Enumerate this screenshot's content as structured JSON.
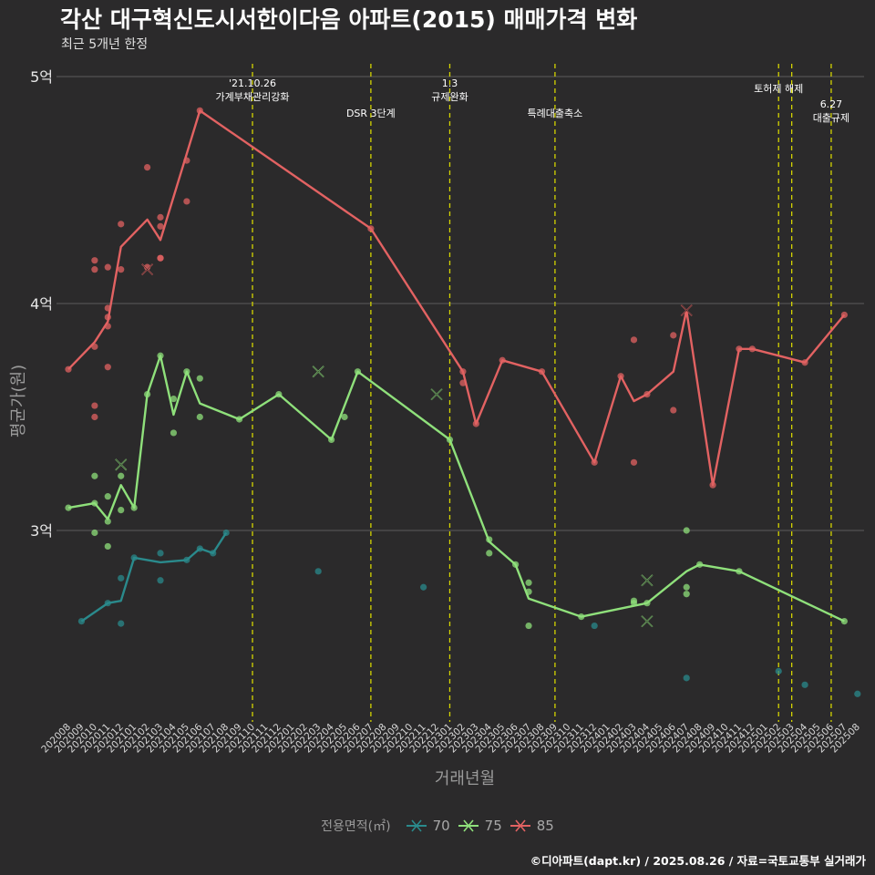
{
  "title": "각산 대구혁신도시서한이다음 아파트(2015) 매매가격 변화",
  "subtitle": "최근 5개년 한정",
  "caption": "©디아파트(dapt.kr) / 2025.08.26 / 자료=국토교통부 실거래가",
  "colors": {
    "s70": "#2a8a8c",
    "s75": "#8fe07b",
    "s85": "#e26262",
    "event": "#d4d400",
    "grid": "#5c5c5c",
    "bg": "#2b2a2b"
  },
  "chart_data": {
    "type": "line",
    "xlabel": "거래년월",
    "ylabel": "평균가(원)",
    "ylim": [
      2.2,
      5.05
    ],
    "y_ticks": [
      {
        "value": 3,
        "label": "3억"
      },
      {
        "value": 4,
        "label": "4억"
      },
      {
        "value": 5,
        "label": "5억"
      }
    ],
    "categories": [
      "202008",
      "202009",
      "202010",
      "202011",
      "202012",
      "202101",
      "202102",
      "202103",
      "202104",
      "202105",
      "202106",
      "202107",
      "202108",
      "202109",
      "202110",
      "202111",
      "202112",
      "202201",
      "202202",
      "202203",
      "202204",
      "202205",
      "202206",
      "202207",
      "202208",
      "202209",
      "202210",
      "202211",
      "202212",
      "202301",
      "202302",
      "202303",
      "202304",
      "202305",
      "202306",
      "202307",
      "202308",
      "202309",
      "202310",
      "202311",
      "202312",
      "202401",
      "202402",
      "202403",
      "202404",
      "202405",
      "202406",
      "202407",
      "202408",
      "202409",
      "202410",
      "202411",
      "202412",
      "202501",
      "202502",
      "202503",
      "202504",
      "202505",
      "202506",
      "202507",
      "202508"
    ],
    "legend_title": "전용면적(㎡)",
    "series": [
      {
        "name": "70",
        "color_key": "s70",
        "line": [
          [
            "202009",
            2.6
          ],
          [
            "202011",
            2.68
          ],
          [
            "202012",
            2.69
          ],
          [
            "202101",
            2.88
          ],
          [
            "202103",
            2.86
          ],
          [
            "202105",
            2.87
          ],
          [
            "202106",
            2.92
          ],
          [
            "202107",
            2.9
          ],
          [
            "202108",
            2.99
          ]
        ],
        "points": [
          [
            "202009",
            2.6
          ],
          [
            "202011",
            2.68
          ],
          [
            "202012",
            2.79
          ],
          [
            "202012",
            2.59
          ],
          [
            "202101",
            2.88
          ],
          [
            "202103",
            2.9
          ],
          [
            "202103",
            2.78
          ],
          [
            "202105",
            2.87
          ],
          [
            "202106",
            2.92
          ],
          [
            "202107",
            2.9
          ],
          [
            "202108",
            2.99
          ],
          [
            "202203",
            2.82
          ],
          [
            "202211",
            2.75
          ],
          [
            "202312",
            2.58
          ],
          [
            "202407",
            2.35
          ],
          [
            "202502",
            2.38
          ],
          [
            "202504",
            2.32
          ],
          [
            "202508",
            2.28
          ]
        ],
        "crosses": []
      },
      {
        "name": "75",
        "color_key": "s75",
        "line": [
          [
            "202008",
            3.1
          ],
          [
            "202010",
            3.12
          ],
          [
            "202011",
            3.05
          ],
          [
            "202012",
            3.2
          ],
          [
            "202101",
            3.1
          ],
          [
            "202102",
            3.6
          ],
          [
            "202103",
            3.77
          ],
          [
            "202104",
            3.51
          ],
          [
            "202105",
            3.7
          ],
          [
            "202106",
            3.56
          ],
          [
            "202109",
            3.49
          ],
          [
            "202112",
            3.6
          ],
          [
            "202204",
            3.4
          ],
          [
            "202206",
            3.7
          ],
          [
            "202301",
            3.4
          ],
          [
            "202304",
            2.95
          ],
          [
            "202306",
            2.85
          ],
          [
            "202307",
            2.7
          ],
          [
            "202311",
            2.62
          ],
          [
            "202404",
            2.68
          ],
          [
            "202407",
            2.82
          ],
          [
            "202408",
            2.85
          ],
          [
            "202411",
            2.82
          ],
          [
            "202507",
            2.6
          ]
        ],
        "points": [
          [
            "202008",
            3.1
          ],
          [
            "202010",
            3.12
          ],
          [
            "202010",
            2.99
          ],
          [
            "202010",
            3.24
          ],
          [
            "202011",
            3.04
          ],
          [
            "202011",
            3.15
          ],
          [
            "202011",
            2.93
          ],
          [
            "202012",
            3.24
          ],
          [
            "202012",
            3.09
          ],
          [
            "202101",
            3.1
          ],
          [
            "202102",
            3.6
          ],
          [
            "202103",
            3.77
          ],
          [
            "202104",
            3.58
          ],
          [
            "202104",
            3.43
          ],
          [
            "202105",
            3.7
          ],
          [
            "202106",
            3.67
          ],
          [
            "202106",
            3.5
          ],
          [
            "202109",
            3.49
          ],
          [
            "202112",
            3.6
          ],
          [
            "202204",
            3.4
          ],
          [
            "202205",
            3.5
          ],
          [
            "202206",
            3.7
          ],
          [
            "202301",
            3.4
          ],
          [
            "202304",
            2.96
          ],
          [
            "202304",
            2.9
          ],
          [
            "202306",
            2.85
          ],
          [
            "202307",
            2.77
          ],
          [
            "202307",
            2.73
          ],
          [
            "202307",
            2.58
          ],
          [
            "202311",
            2.62
          ],
          [
            "202403",
            2.69
          ],
          [
            "202403",
            2.68
          ],
          [
            "202404",
            2.68
          ],
          [
            "202407",
            3.0
          ],
          [
            "202407",
            2.75
          ],
          [
            "202407",
            2.72
          ],
          [
            "202408",
            2.85
          ],
          [
            "202411",
            2.82
          ],
          [
            "202507",
            2.6
          ]
        ],
        "crosses": [
          [
            "202012",
            3.29
          ],
          [
            "202203",
            3.7
          ],
          [
            "202212",
            3.6
          ],
          [
            "202404",
            2.78
          ],
          [
            "202404",
            2.6
          ]
        ]
      },
      {
        "name": "85",
        "color_key": "s85",
        "line": [
          [
            "202008",
            3.71
          ],
          [
            "202010",
            3.83
          ],
          [
            "202011",
            3.92
          ],
          [
            "202012",
            4.25
          ],
          [
            "202102",
            4.37
          ],
          [
            "202103",
            4.28
          ],
          [
            "202106",
            4.85
          ],
          [
            "202207",
            4.33
          ],
          [
            "202302",
            3.7
          ],
          [
            "202303",
            3.47
          ],
          [
            "202305",
            3.75
          ],
          [
            "202308",
            3.7
          ],
          [
            "202312",
            3.3
          ],
          [
            "202402",
            3.68
          ],
          [
            "202403",
            3.57
          ],
          [
            "202404",
            3.6
          ],
          [
            "202406",
            3.7
          ],
          [
            "202407",
            3.97
          ],
          [
            "202409",
            3.2
          ],
          [
            "202411",
            3.8
          ],
          [
            "202412",
            3.8
          ],
          [
            "202504",
            3.74
          ],
          [
            "202507",
            3.95
          ]
        ],
        "points": [
          [
            "202008",
            3.71
          ],
          [
            "202010",
            4.19
          ],
          [
            "202010",
            4.15
          ],
          [
            "202010",
            3.81
          ],
          [
            "202010",
            3.55
          ],
          [
            "202010",
            3.5
          ],
          [
            "202011",
            4.16
          ],
          [
            "202011",
            3.98
          ],
          [
            "202011",
            3.94
          ],
          [
            "202011",
            3.9
          ],
          [
            "202011",
            3.72
          ],
          [
            "202012",
            4.35
          ],
          [
            "202012",
            4.15
          ],
          [
            "202102",
            4.6
          ],
          [
            "202102",
            4.16
          ],
          [
            "202103",
            4.38
          ],
          [
            "202103",
            4.34
          ],
          [
            "202103",
            4.2
          ],
          [
            "202103",
            4.2
          ],
          [
            "202105",
            4.63
          ],
          [
            "202105",
            4.45
          ],
          [
            "202106",
            4.85
          ],
          [
            "202207",
            4.33
          ],
          [
            "202302",
            3.7
          ],
          [
            "202302",
            3.65
          ],
          [
            "202303",
            3.47
          ],
          [
            "202305",
            3.75
          ],
          [
            "202308",
            3.7
          ],
          [
            "202312",
            3.3
          ],
          [
            "202402",
            3.68
          ],
          [
            "202403",
            3.84
          ],
          [
            "202403",
            3.3
          ],
          [
            "202404",
            3.6
          ],
          [
            "202406",
            3.86
          ],
          [
            "202406",
            3.53
          ],
          [
            "202409",
            3.2
          ],
          [
            "202411",
            3.8
          ],
          [
            "202412",
            3.8
          ],
          [
            "202504",
            3.74
          ],
          [
            "202507",
            3.95
          ]
        ],
        "crosses": [
          [
            "202102",
            4.15
          ],
          [
            "202407",
            3.97
          ]
        ]
      }
    ],
    "events": [
      {
        "month": "202110",
        "lines": [
          "'21.10.26",
          "가계부채관리강화"
        ],
        "row": 0
      },
      {
        "month": "202207",
        "lines": [
          "DSR 3단계"
        ],
        "row": 2
      },
      {
        "month": "202301",
        "lines": [
          "1.3",
          "규제완화"
        ],
        "row": 0
      },
      {
        "month": "202309",
        "lines": [
          "특례대출축소"
        ],
        "row": 2
      },
      {
        "month": "202502",
        "lines": [
          "토허제 해제"
        ],
        "row": 1
      },
      {
        "month": "202503",
        "lines": [],
        "row": 1
      },
      {
        "month": "202506",
        "lines": [
          "6.27",
          "대출규제"
        ],
        "row": 3
      }
    ]
  }
}
